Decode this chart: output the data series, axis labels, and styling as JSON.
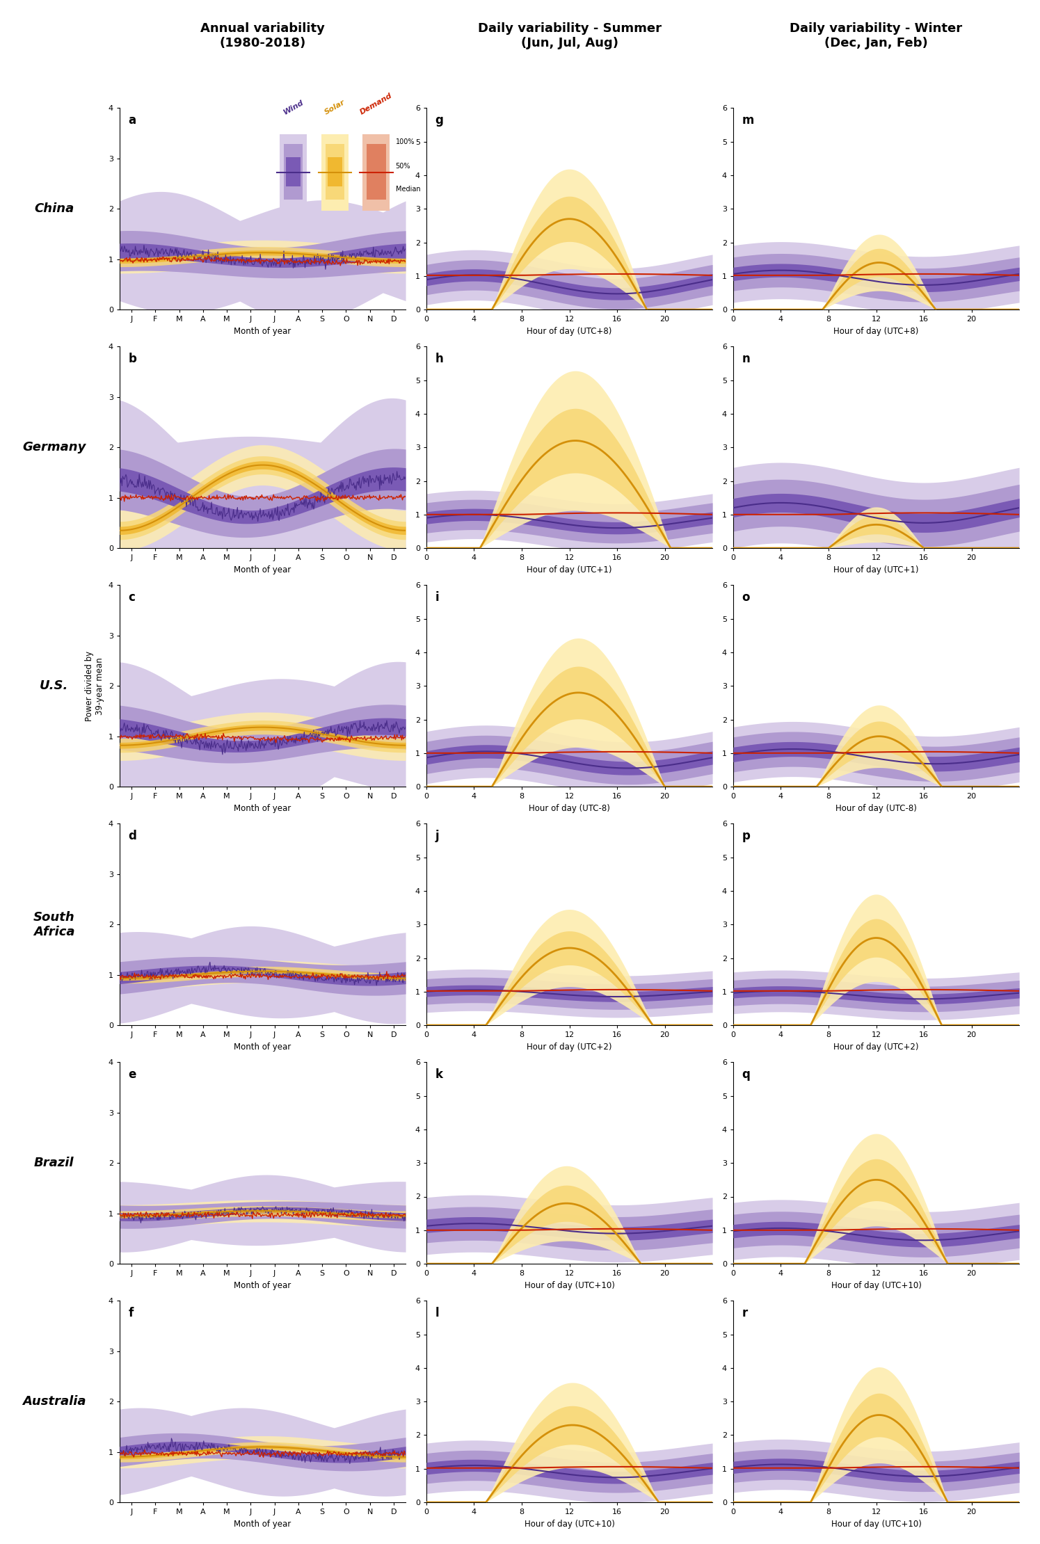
{
  "title_col1": "Annual variability\n(1980-2018)",
  "title_col2": "Daily variability - Summer\n(Jun, Jul, Aug)",
  "title_col3": "Daily variability - Winter\n(Dec, Jan, Feb)",
  "row_labels": [
    "China",
    "Germany",
    "U.S.",
    "South\nAfrica",
    "Brazil",
    "Australia"
  ],
  "panel_labels_col1": [
    "a",
    "b",
    "c",
    "d",
    "e",
    "f"
  ],
  "panel_labels_col2": [
    "g",
    "h",
    "i",
    "j",
    "k",
    "l"
  ],
  "panel_labels_col3": [
    "m",
    "n",
    "o",
    "p",
    "q",
    "r"
  ],
  "col1_xlabel": "Month of year",
  "col1_xticks": [
    "J",
    "F",
    "M",
    "A",
    "M",
    "J",
    "J",
    "A",
    "S",
    "O",
    "N",
    "D"
  ],
  "col2_xlabels": [
    "Hour of day (UTC+8)",
    "Hour of day (UTC+1)",
    "Hour of day (UTC-8)",
    "Hour of day (UTC+2)",
    "Hour of day (UTC+10)",
    "Hour of day (UTC+10)"
  ],
  "col3_xlabels": [
    "Hour of day (UTC+8)",
    "Hour of day (UTC+1)",
    "Hour of day (UTC-8)",
    "Hour of day (UTC+2)",
    "Hour of day (UTC+10)",
    "Hour of day (UTC+10)"
  ],
  "col1_ylim": [
    0,
    4
  ],
  "col1_yticks": [
    0,
    1,
    2,
    3,
    4
  ],
  "col23_ylim": [
    0,
    6
  ],
  "col23_yticks": [
    0,
    1,
    2,
    3,
    4,
    5,
    6
  ],
  "ylabel": "Power divided by\n39-year mean",
  "wind_dark": "#4a2d8a",
  "wind_mid": "#7a5ab5",
  "wind_light": "#b09ad0",
  "wind_vlight": "#d8cce8",
  "solar_dark": "#d4900a",
  "solar_mid": "#f0b830",
  "solar_light": "#f8d878",
  "solar_vlight": "#fdedb0",
  "demand_color": "#cc2200",
  "demand_band_mid": "#e08060",
  "demand_band_light": "#f0c0a8"
}
